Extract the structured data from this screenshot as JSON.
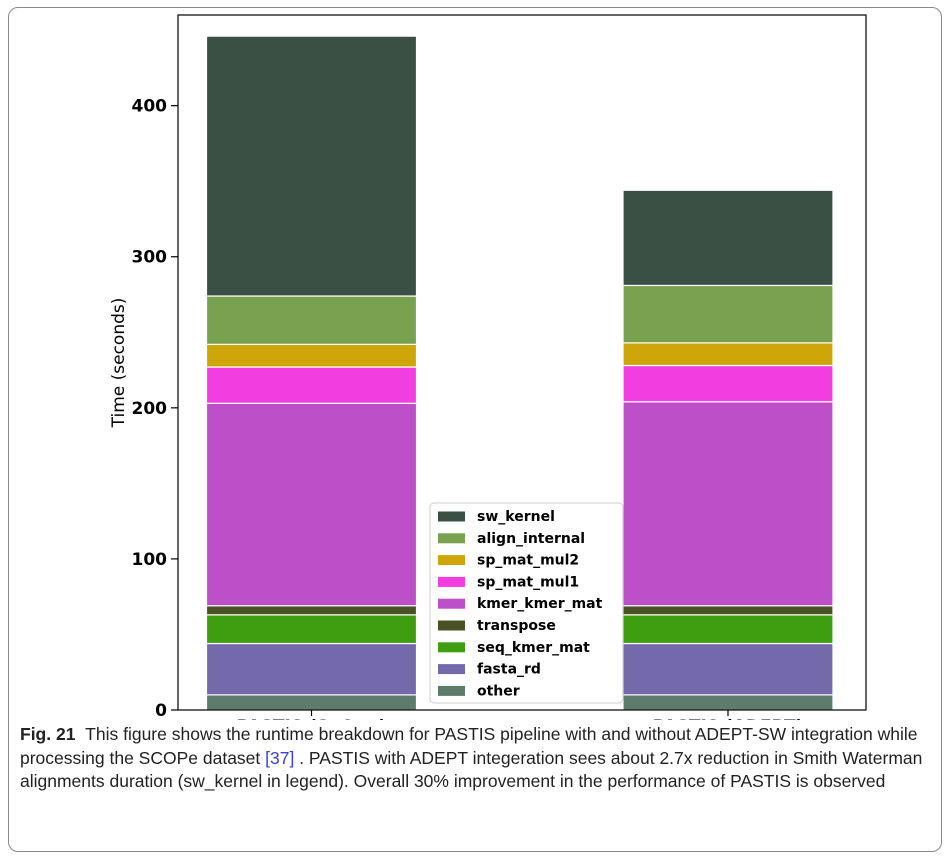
{
  "chart_data": {
    "type": "bar",
    "stacked": true,
    "categories": [
      "PASTIS (SeQan)",
      "PASTIS (ADEPT)"
    ],
    "xlabel": "",
    "ylabel": "Time (seconds)",
    "ylim": [
      0,
      460
    ],
    "yticks": [
      0,
      100,
      200,
      300,
      400
    ],
    "grid": false,
    "legend_position": "bottom-center",
    "series": [
      {
        "name": "other",
        "color": "#5e7c6b",
        "values": [
          10,
          10
        ]
      },
      {
        "name": "fasta_rd",
        "color": "#7369ab",
        "values": [
          34,
          34
        ]
      },
      {
        "name": "seq_kmer_mat",
        "color": "#3f9e0f",
        "values": [
          19,
          19
        ]
      },
      {
        "name": "transpose",
        "color": "#4a5125",
        "values": [
          6,
          6
        ]
      },
      {
        "name": "kmer_kmer_mat",
        "color": "#bd4fc8",
        "values": [
          134,
          135
        ]
      },
      {
        "name": "sp_mat_mul1",
        "color": "#f23ee0",
        "values": [
          24,
          24
        ]
      },
      {
        "name": "sp_mat_mul2",
        "color": "#cfa60a",
        "values": [
          15,
          15
        ]
      },
      {
        "name": "align_internal",
        "color": "#78a150",
        "values": [
          32,
          38
        ]
      },
      {
        "name": "sw_kernel",
        "color": "#3a5044",
        "values": [
          172,
          63
        ]
      }
    ]
  },
  "caption": {
    "label": "Fig. 21",
    "text_before_ref": "This figure shows the runtime breakdown for PASTIS pipeline with and without ADEPT-SW integration while processing the SCOPe dataset ",
    "ref": "[37]",
    "text_after_ref": " . PASTIS with ADEPT integeration sees about 2.7x reduction in Smith Waterman alignments duration (sw_kernel in legend). Overall 30% improvement in the performance of PASTIS is observed"
  }
}
